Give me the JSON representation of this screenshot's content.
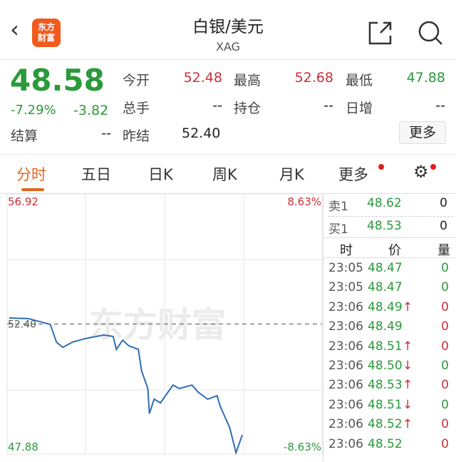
{
  "header": {
    "title": "白银/美元",
    "subtitle": "XAG",
    "logo_text": "东方财富",
    "logo_color": "#f05a1e"
  },
  "quote": {
    "price": "48.58",
    "change_pct": "-7.29%",
    "change": "-3.82",
    "fields": [
      {
        "label": "今开",
        "value": "52.48"
      },
      {
        "label": "最高",
        "value": "52.68"
      },
      {
        "label": "最低",
        "value": "47.88"
      },
      {
        "label": "总手",
        "value": "--"
      },
      {
        "label": "持仓",
        "value": "--"
      },
      {
        "label": "日增",
        "value": "--"
      },
      {
        "label": "结算",
        "value": "--"
      },
      {
        "label": "昨结",
        "value": "52.40"
      }
    ],
    "more_label": "更多"
  },
  "tabs": [
    {
      "label": "分时",
      "active": true
    },
    {
      "label": "五日"
    },
    {
      "label": "日K"
    },
    {
      "label": "周K"
    },
    {
      "label": "月K"
    },
    {
      "label": "更多"
    }
  ],
  "chart_data": {
    "type": "line",
    "ylim": [
      47.88,
      56.92
    ],
    "y_max_label": "56.92",
    "y_min_label": "47.88",
    "pct_max_label": "8.63%",
    "pct_min_label": "-8.63%",
    "ref_label": "52.40",
    "ref_value": 52.4,
    "line_color": "#2f6db5",
    "watermark": "东方财富",
    "x": [
      0,
      6,
      13,
      15,
      17,
      20,
      24,
      30,
      33,
      34,
      36,
      38,
      41,
      42,
      44,
      44.5,
      46,
      48,
      52,
      54,
      58,
      60,
      63,
      66,
      67,
      70,
      72,
      74
    ],
    "y": [
      52.61,
      52.59,
      52.39,
      51.77,
      51.59,
      51.77,
      51.89,
      52.02,
      51.97,
      51.52,
      51.84,
      51.64,
      51.52,
      50.78,
      50.16,
      49.29,
      49.79,
      49.66,
      50.28,
      50.16,
      50.28,
      50.03,
      49.79,
      49.91,
      49.54,
      48.8,
      47.93,
      48.55
    ]
  },
  "orderbook": {
    "ask": {
      "label": "卖1",
      "price": "48.62",
      "vol": "0"
    },
    "bid": {
      "label": "买1",
      "price": "48.53",
      "vol": "0"
    }
  },
  "ticks": {
    "headers": [
      "时",
      "价",
      "量"
    ],
    "rows": [
      {
        "t": "23:05",
        "p": "48.47",
        "a": "",
        "v": "0",
        "vc": "g"
      },
      {
        "t": "23:05",
        "p": "48.47",
        "a": "",
        "v": "0",
        "vc": "g"
      },
      {
        "t": "23:06",
        "p": "48.49",
        "a": "↑",
        "v": "0",
        "vc": "r"
      },
      {
        "t": "23:06",
        "p": "48.49",
        "a": "",
        "v": "0",
        "vc": "r"
      },
      {
        "t": "23:06",
        "p": "48.51",
        "a": "↑",
        "v": "0",
        "vc": "r"
      },
      {
        "t": "23:06",
        "p": "48.50",
        "a": "↓",
        "v": "0",
        "vc": "g"
      },
      {
        "t": "23:06",
        "p": "48.53",
        "a": "↑",
        "v": "0",
        "vc": "r"
      },
      {
        "t": "23:06",
        "p": "48.51",
        "a": "↓",
        "v": "0",
        "vc": "g"
      },
      {
        "t": "23:06",
        "p": "48.52",
        "a": "↑",
        "v": "0",
        "vc": "r"
      },
      {
        "t": "23:06",
        "p": "48.52",
        "a": "",
        "v": "0",
        "vc": "r"
      }
    ]
  }
}
